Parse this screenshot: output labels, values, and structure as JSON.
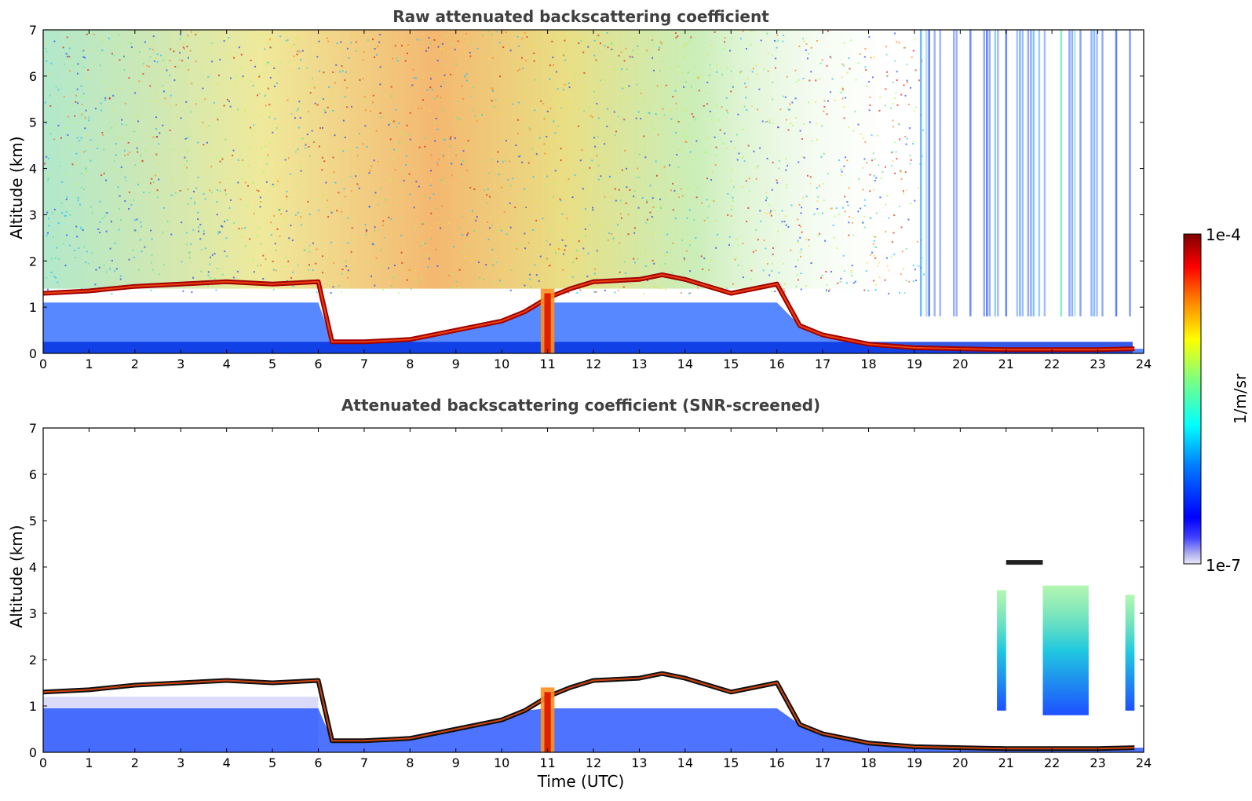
{
  "chart_data": [
    {
      "type": "heatmap",
      "title": "Raw attenuated backscattering coefficient",
      "xlabel": "",
      "ylabel": "Altitude (km)",
      "xlim": [
        0,
        24
      ],
      "ylim": [
        0,
        7
      ],
      "x_ticks": [
        "0",
        "1",
        "2",
        "3",
        "4",
        "5",
        "6",
        "7",
        "8",
        "9",
        "10",
        "11",
        "12",
        "13",
        "14",
        "15",
        "16",
        "17",
        "18",
        "19",
        "20",
        "21",
        "22",
        "23",
        "24"
      ],
      "y_ticks": [
        "0",
        "1",
        "2",
        "3",
        "4",
        "5",
        "6",
        "7"
      ],
      "colorscale": "jet",
      "color_range": [
        "1e-7",
        "1e-4"
      ],
      "color_unit": "1/m/sr",
      "features": {
        "aerosol_layer_top": {
          "time": [
            0,
            1,
            2,
            3,
            4,
            5,
            6,
            6.3,
            7,
            8,
            9,
            10,
            10.5,
            11,
            11.5,
            12,
            13,
            13.5,
            14,
            15,
            16,
            16.5,
            17,
            18,
            19,
            20,
            21,
            22,
            23,
            23.8
          ],
          "altitude_km": [
            1.3,
            1.35,
            1.45,
            1.5,
            1.55,
            1.5,
            1.55,
            0.25,
            0.25,
            0.3,
            0.5,
            0.7,
            0.9,
            1.2,
            1.4,
            1.55,
            1.6,
            1.7,
            1.6,
            1.3,
            1.5,
            0.6,
            0.4,
            0.2,
            0.12,
            0.1,
            0.08,
            0.08,
            0.08,
            0.1
          ]
        },
        "noise_band_time_range": [
          0,
          24
        ],
        "sparse_high_signal_columns_time_range": [
          19,
          23.8
        ]
      }
    },
    {
      "type": "heatmap",
      "title": "Attenuated backscattering coefficient (SNR-screened)",
      "xlabel": "Time (UTC)",
      "ylabel": "Altitude (km)",
      "xlim": [
        0,
        24
      ],
      "ylim": [
        0,
        7
      ],
      "x_ticks": [
        "0",
        "1",
        "2",
        "3",
        "4",
        "5",
        "6",
        "7",
        "8",
        "9",
        "10",
        "11",
        "12",
        "13",
        "14",
        "15",
        "16",
        "17",
        "18",
        "19",
        "20",
        "21",
        "22",
        "23",
        "24"
      ],
      "y_ticks": [
        "0",
        "1",
        "2",
        "3",
        "4",
        "5",
        "6",
        "7"
      ],
      "colorscale": "jet",
      "color_range": [
        "1e-7",
        "1e-4"
      ],
      "color_unit": "1/m/sr",
      "features": {
        "aerosol_layer_top": {
          "time": [
            0,
            1,
            2,
            3,
            4,
            5,
            6,
            6.3,
            7,
            8,
            9,
            10,
            10.5,
            11,
            11.5,
            12,
            13,
            13.5,
            14,
            15,
            16,
            16.5,
            17,
            18,
            19,
            20,
            21,
            22,
            23,
            23.8
          ],
          "altitude_km": [
            1.3,
            1.35,
            1.45,
            1.5,
            1.55,
            1.5,
            1.55,
            0.25,
            0.25,
            0.3,
            0.5,
            0.7,
            0.9,
            1.2,
            1.4,
            1.55,
            1.6,
            1.7,
            1.6,
            1.3,
            1.5,
            0.6,
            0.4,
            0.2,
            0.12,
            0.1,
            0.08,
            0.08,
            0.08,
            0.1
          ]
        },
        "cloud_columns": [
          {
            "time_range": [
              20.8,
              21.0
            ],
            "altitude_range_km": [
              0.9,
              3.5
            ]
          },
          {
            "time_range": [
              21.8,
              22.8
            ],
            "altitude_range_km": [
              0.8,
              3.6
            ]
          },
          {
            "time_range": [
              23.6,
              23.8
            ],
            "altitude_range_km": [
              0.9,
              3.4
            ]
          }
        ],
        "elevated_layer": {
          "time_range": [
            21.0,
            21.8
          ],
          "altitude_km": 4.1
        }
      }
    }
  ],
  "colorbar": {
    "max_label": "1e-4",
    "min_label": "1e-7",
    "unit_label": "1/m/sr",
    "colors": [
      "#00007f",
      "#0000ff",
      "#007fff",
      "#00ffff",
      "#7fff7f",
      "#ffff00",
      "#ff7f00",
      "#ff0000",
      "#7f0000"
    ]
  }
}
